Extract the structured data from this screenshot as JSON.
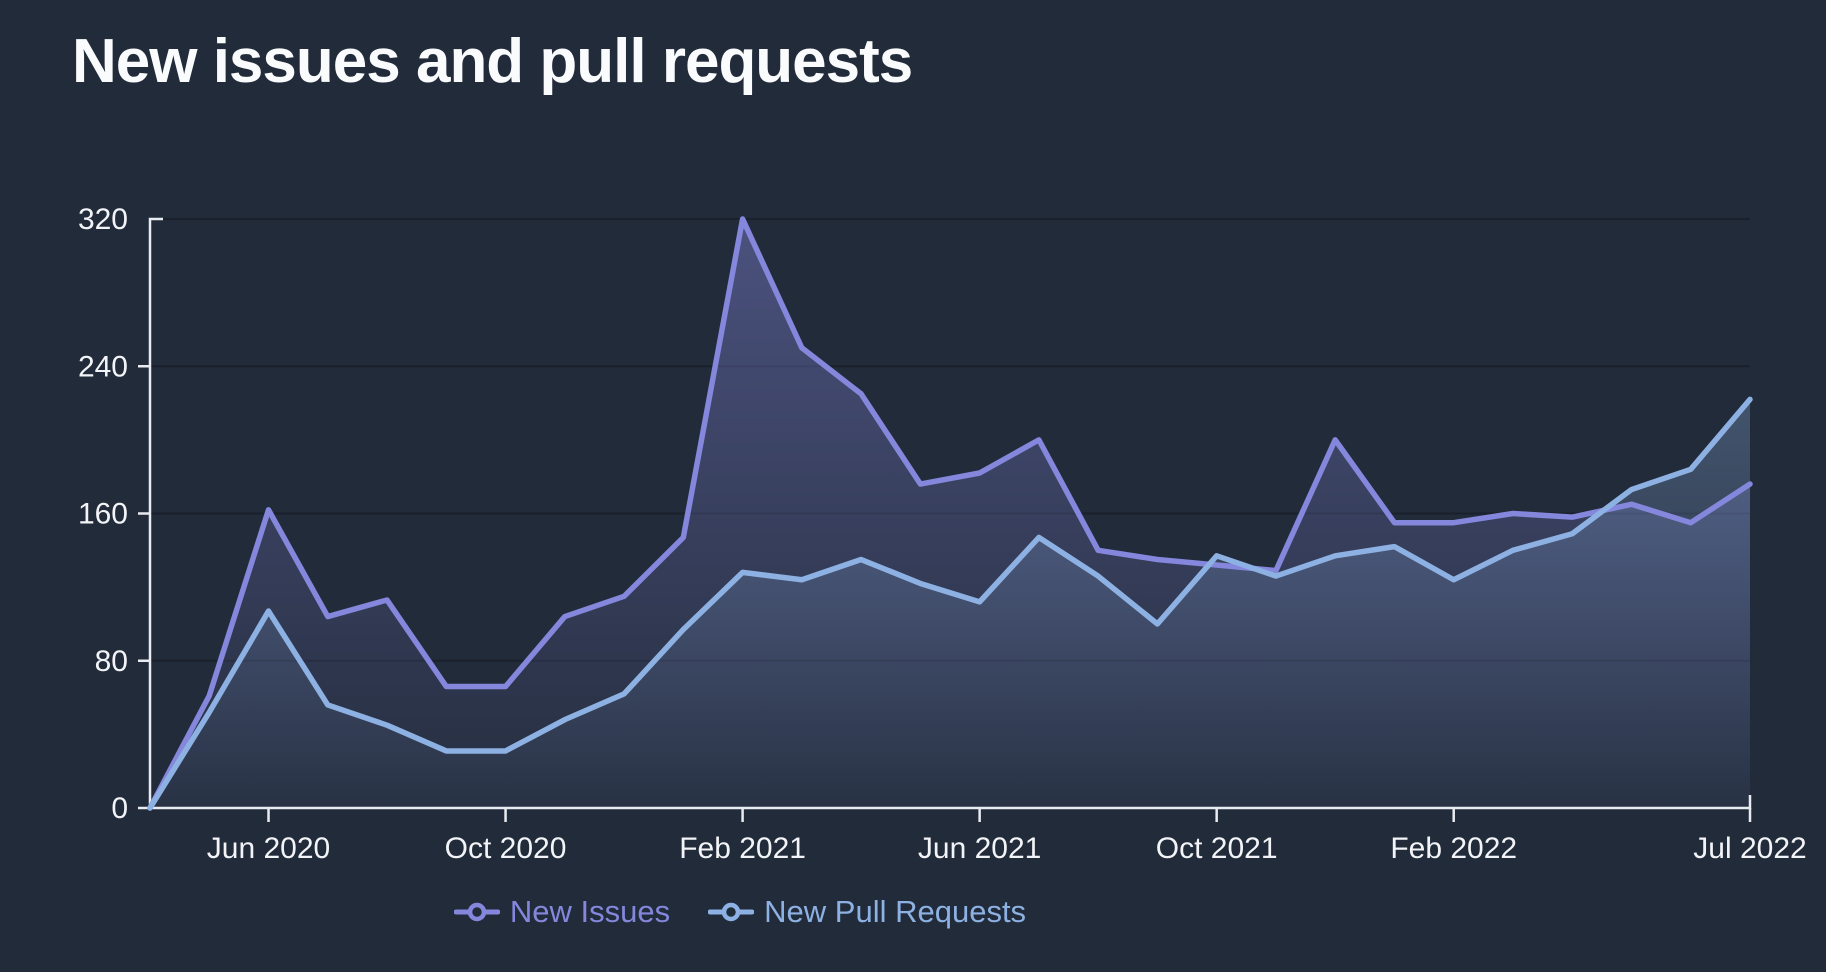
{
  "title": "New issues and pull requests",
  "colors": {
    "background": "#222b3a",
    "grid": "#1a212d",
    "axis": "#e8ebf0",
    "tick_label": "#f2f4f7",
    "issues": "#8487dc",
    "pulls": "#8db1e2"
  },
  "legend": {
    "items": [
      {
        "label": "New Issues",
        "marker": "line-circle-icon"
      },
      {
        "label": "New Pull Requests",
        "marker": "line-circle-icon"
      }
    ]
  },
  "chart_data": {
    "type": "area",
    "title": "New issues and pull requests",
    "xlabel": "",
    "ylabel": "",
    "ylim": [
      0,
      320
    ],
    "yticks": [
      0,
      80,
      160,
      240,
      320
    ],
    "grid": "horizontal",
    "legend_position": "bottom",
    "x": [
      "Apr 2020",
      "May 2020",
      "Jun 2020",
      "Jul 2020",
      "Aug 2020",
      "Sep 2020",
      "Oct 2020",
      "Nov 2020",
      "Dec 2020",
      "Jan 2021",
      "Feb 2021",
      "Mar 2021",
      "Apr 2021",
      "May 2021",
      "Jun 2021",
      "Jul 2021",
      "Aug 2021",
      "Sep 2021",
      "Oct 2021",
      "Nov 2021",
      "Dec 2021",
      "Jan 2022",
      "Feb 2022",
      "Mar 2022",
      "Apr 2022",
      "May 2022",
      "Jun 2022",
      "Jul 2022"
    ],
    "xtick_labels": [
      {
        "index": 2,
        "label": "Jun 2020"
      },
      {
        "index": 6,
        "label": "Oct 2020"
      },
      {
        "index": 10,
        "label": "Feb 2021"
      },
      {
        "index": 14,
        "label": "Jun 2021"
      },
      {
        "index": 18,
        "label": "Oct 2021"
      },
      {
        "index": 22,
        "label": "Feb 2022"
      },
      {
        "index": 27,
        "label": "Jul 2022"
      }
    ],
    "series": [
      {
        "name": "New Issues",
        "color": "#8487dc",
        "values": [
          0,
          61,
          162,
          104,
          113,
          66,
          66,
          104,
          115,
          147,
          320,
          250,
          225,
          176,
          182,
          200,
          140,
          135,
          132,
          129,
          200,
          155,
          155,
          160,
          158,
          165,
          155,
          176
        ]
      },
      {
        "name": "New Pull Requests",
        "color": "#8db1e2",
        "values": [
          0,
          52,
          107,
          56,
          45,
          31,
          31,
          48,
          62,
          97,
          128,
          124,
          135,
          122,
          112,
          147,
          126,
          100,
          137,
          126,
          137,
          142,
          124,
          140,
          149,
          173,
          184,
          222
        ]
      }
    ]
  }
}
